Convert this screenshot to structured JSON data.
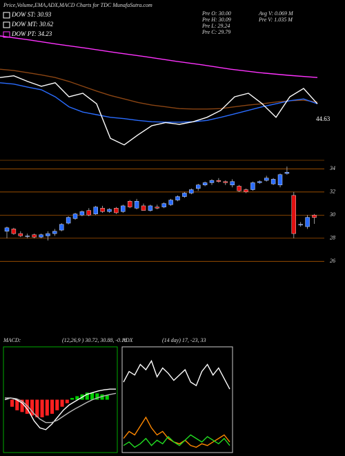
{
  "title": "Price,Volume,EMA,ADX,MACD Charts for TDC MunafaSutra.com",
  "legend": [
    {
      "label": "DOW ST: 30.93",
      "color": "#ffffff"
    },
    {
      "label": "DOW MT: 30.62",
      "color": "#ffffff"
    },
    {
      "label": "DOW PT: 34.23",
      "color": "#ff33ff"
    }
  ],
  "info": [
    "Pre  O: 30.00",
    "Pre  H: 30.09",
    "Pre  L: 29.24",
    "Pre  C: 29.79",
    "Avg V: 0.069 M",
    "Pre  V: 1.035 M"
  ],
  "chart_data": [
    {
      "type": "line",
      "ylim": [
        40,
        70
      ],
      "annotation": 44.63,
      "series": [
        {
          "color": "#ff33ff",
          "values": [
            68.1,
            67.2,
            66.2,
            65.3,
            64.3,
            63.4,
            62.4,
            61.5,
            60.5,
            59.7,
            59.1,
            58.6
          ]
        },
        {
          "color": "#8b4513",
          "values": [
            60.5,
            60.2,
            59.7,
            59.2,
            58.6,
            57.7,
            56.6,
            55.5,
            54.5,
            53.7,
            52.9,
            52.3,
            51.9,
            51.5,
            51.4,
            51.4,
            51.5,
            51.9,
            52.3,
            52.6,
            53.0,
            53.3,
            53.4,
            53.0
          ]
        },
        {
          "color": "#2a6cff",
          "values": [
            57.4,
            57.1,
            56.4,
            55.8,
            54.2,
            51.9,
            50.7,
            50.1,
            49.5,
            49.2,
            48.8,
            48.5,
            48.4,
            48.4,
            48.5,
            48.8,
            49.5,
            50.3,
            51.1,
            51.9,
            52.6,
            53.3,
            53.7,
            52.6
          ]
        },
        {
          "color": "#ffffff",
          "values": [
            58.6,
            59.0,
            57.7,
            56.6,
            57.4,
            54.2,
            55.0,
            52.6,
            44.7,
            43.2,
            45.5,
            47.6,
            48.3,
            47.9,
            48.5,
            49.5,
            51.1,
            54.2,
            55.0,
            52.6,
            49.5,
            54.2,
            56.1,
            52.6
          ]
        }
      ]
    },
    {
      "type": "candlestick",
      "ylim": [
        25,
        34.5
      ],
      "yticks": [
        26,
        28,
        30,
        32,
        34
      ],
      "grid": true,
      "grid_color": "#cc6600",
      "up_color": "#2a6cff",
      "down_color": "#e01010",
      "open": [
        28.6,
        28.8,
        28.4,
        28.2,
        28.3,
        28.1,
        28.2,
        28.4,
        28.7,
        29.3,
        29.7,
        30.0,
        30.4,
        30.1,
        30.6,
        30.3,
        30.6,
        30.3,
        31.2,
        30.6,
        30.8,
        30.4,
        30.7,
        30.7,
        30.9,
        31.3,
        31.6,
        31.9,
        32.3,
        32.6,
        32.8,
        33.0,
        32.9,
        32.6,
        32.5,
        32.2,
        32.2,
        32.8,
        33.0,
        32.7,
        32.6,
        33.6,
        31.7,
        29.2,
        29.0,
        30.0
      ],
      "high": [
        29.0,
        28.9,
        28.6,
        28.4,
        28.4,
        28.4,
        28.6,
        28.8,
        29.3,
        29.9,
        30.2,
        30.4,
        30.6,
        30.8,
        30.8,
        30.6,
        30.7,
        30.9,
        31.3,
        31.4,
        31.0,
        30.9,
        30.9,
        31.1,
        31.4,
        31.7,
        32.0,
        32.3,
        32.7,
        32.9,
        33.1,
        33.2,
        33.0,
        33.1,
        32.6,
        32.3,
        32.9,
        33.0,
        33.4,
        33.2,
        33.6,
        34.2,
        32.0,
        29.4,
        30.0,
        30.09
      ],
      "low": [
        28.0,
        28.3,
        28.1,
        28.0,
        28.0,
        28.0,
        27.8,
        28.2,
        28.6,
        29.2,
        29.6,
        29.9,
        29.9,
        30.0,
        30.2,
        30.2,
        30.1,
        30.2,
        30.6,
        30.5,
        30.4,
        30.3,
        30.5,
        30.6,
        30.8,
        31.2,
        31.5,
        31.8,
        32.1,
        32.5,
        32.6,
        32.8,
        32.6,
        32.4,
        32.0,
        31.9,
        32.1,
        32.7,
        32.9,
        32.6,
        32.4,
        33.5,
        28.0,
        29.0,
        28.8,
        29.24
      ],
      "close": [
        28.9,
        28.4,
        28.2,
        28.2,
        28.1,
        28.3,
        28.4,
        28.6,
        29.2,
        29.8,
        30.1,
        30.3,
        30.0,
        30.7,
        30.3,
        30.5,
        30.2,
        30.8,
        30.7,
        31.2,
        30.4,
        30.8,
        30.6,
        31.0,
        31.3,
        31.6,
        31.9,
        32.2,
        32.6,
        32.8,
        33.0,
        32.9,
        32.8,
        32.9,
        32.1,
        32.0,
        32.8,
        32.9,
        33.2,
        33.1,
        33.5,
        33.7,
        28.4,
        29.2,
        29.8,
        29.79
      ]
    },
    {
      "type": "macd",
      "title": "MACD:",
      "subtitle": "(12,26,9 ) 30.72, 30.88, -0.16",
      "ylim": [
        -1.5,
        1.5
      ],
      "border_color": "#00aa00",
      "up_color": "#00cc00",
      "down_color": "#ff2020",
      "histogram": [
        -0.2,
        -0.3,
        -0.35,
        -0.4,
        -0.45,
        -0.5,
        -0.5,
        -0.45,
        -0.4,
        -0.3,
        -0.2,
        -0.1,
        0.05,
        0.1,
        0.15,
        0.2,
        0.2,
        0.18,
        0.15,
        0.12
      ],
      "series": [
        {
          "color": "#ffffff",
          "values": [
            0,
            0.05,
            0,
            -0.1,
            -0.3,
            -0.6,
            -0.8,
            -0.85,
            -0.7,
            -0.5,
            -0.3,
            -0.15,
            -0.05,
            0.05,
            0.15,
            0.2,
            0.25,
            0.28,
            0.3,
            0.3
          ]
        },
        {
          "color": "#bbbbbb",
          "values": [
            0.05,
            0.05,
            0.03,
            -0.05,
            -0.2,
            -0.4,
            -0.55,
            -0.65,
            -0.65,
            -0.58,
            -0.47,
            -0.36,
            -0.26,
            -0.17,
            -0.08,
            0,
            0.06,
            0.11,
            0.15,
            0.18
          ]
        }
      ]
    },
    {
      "type": "adx",
      "title": "ADX",
      "subtitle": "(14 day) 17, -23, 33",
      "ylim": [
        0,
        60
      ],
      "border_color": "#cccccc",
      "series": [
        {
          "color": "#ffffff",
          "values": [
            40,
            46,
            44,
            50,
            47,
            52,
            43,
            48,
            45,
            41,
            44,
            47,
            40,
            38,
            46,
            50,
            44,
            48,
            42,
            36
          ]
        },
        {
          "color": "#ff8800",
          "values": [
            8,
            12,
            10,
            15,
            20,
            14,
            10,
            12,
            8,
            6,
            5,
            7,
            4,
            3,
            5,
            4,
            6,
            8,
            10,
            6
          ]
        },
        {
          "color": "#22dd22",
          "values": [
            4,
            6,
            3,
            5,
            8,
            4,
            7,
            5,
            9,
            6,
            4,
            7,
            10,
            8,
            6,
            9,
            7,
            5,
            8,
            4
          ]
        }
      ]
    }
  ]
}
